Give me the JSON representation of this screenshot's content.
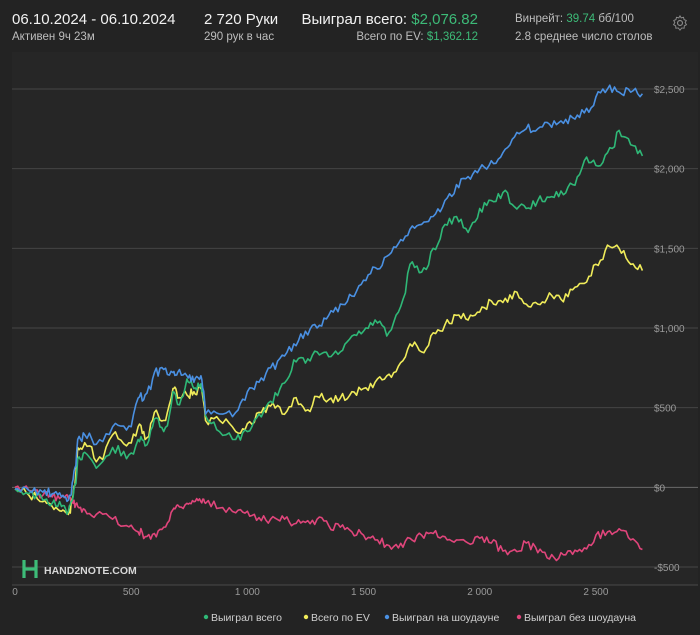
{
  "header": {
    "date_range": "06.10.2024 - 06.10.2024",
    "active_time": "Активен 9ч 23м",
    "hands": "2 720 Руки",
    "hands_per_hour": "290 рук в час",
    "won_total_label": "Выиграл всего:",
    "won_total_value": "$2,076.82",
    "ev_total_label": "Всего по EV:",
    "ev_total_value": "$1,362.12",
    "winrate_label": "Винрейт:",
    "winrate_value": "39.74",
    "winrate_unit": "бб/100",
    "avg_tables": "2.8 среднее число столов"
  },
  "watermark": "HAND2NOTE.COM",
  "colors": {
    "won_total": "#2fb877",
    "ev": "#f0ec5a",
    "showdown": "#4a90e2",
    "non_showdown": "#e0457b",
    "accent_green": "#3dbb78"
  },
  "chart_data": {
    "type": "line",
    "title": "",
    "xlabel": "",
    "ylabel": "",
    "xlim": [
      0,
      2720
    ],
    "ylim": [
      -500,
      2500
    ],
    "x_ticks": [
      0,
      500,
      1000,
      1500,
      2000,
      2500
    ],
    "x_tick_labels": [
      "0",
      "500",
      "1 000",
      "1 500",
      "2 000",
      "2 500"
    ],
    "y_ticks": [
      -500,
      0,
      500,
      1000,
      1500,
      2000,
      2500
    ],
    "y_tick_labels": [
      "-$500",
      "$0",
      "$500",
      "$1,000",
      "$1,500",
      "$2,000",
      "$2,500"
    ],
    "grid": true,
    "legend_position": "bottom",
    "series": [
      {
        "name": "Выиграл всего",
        "color_key": "won_total",
        "x": [
          0,
          60,
          120,
          160,
          200,
          230,
          250,
          270,
          300,
          350,
          420,
          480,
          530,
          560,
          600,
          640,
          680,
          700,
          740,
          770,
          800,
          820,
          880,
          950,
          1000,
          1050,
          1100,
          1150,
          1200,
          1250,
          1300,
          1350,
          1400,
          1450,
          1500,
          1550,
          1600,
          1650,
          1700,
          1750,
          1800,
          1850,
          1900,
          1950,
          2000,
          2050,
          2100,
          2150,
          2200,
          2250,
          2300,
          2350,
          2400,
          2450,
          2500,
          2550,
          2600,
          2650,
          2700
        ],
        "values": [
          -10,
          -40,
          -80,
          -100,
          -120,
          -150,
          -60,
          180,
          220,
          120,
          250,
          180,
          300,
          260,
          430,
          350,
          600,
          520,
          680,
          620,
          650,
          450,
          350,
          300,
          350,
          460,
          540,
          650,
          800,
          780,
          850,
          820,
          850,
          950,
          980,
          1050,
          950,
          1100,
          1400,
          1350,
          1500,
          1650,
          1700,
          1600,
          1750,
          1800,
          1850,
          1760,
          1750,
          1800,
          1820,
          1860,
          1900,
          2050,
          2020,
          2100,
          2240,
          2150,
          2080
        ]
      },
      {
        "name": "Всего по EV",
        "color_key": "ev",
        "x": [
          0,
          60,
          120,
          160,
          200,
          230,
          250,
          270,
          300,
          350,
          420,
          480,
          530,
          560,
          600,
          640,
          680,
          700,
          740,
          770,
          800,
          820,
          880,
          950,
          1000,
          1050,
          1100,
          1150,
          1200,
          1250,
          1300,
          1350,
          1400,
          1450,
          1500,
          1550,
          1600,
          1650,
          1700,
          1750,
          1800,
          1850,
          1900,
          1950,
          2000,
          2050,
          2100,
          2150,
          2200,
          2250,
          2300,
          2350,
          2400,
          2450,
          2500,
          2550,
          2600,
          2650,
          2700
        ],
        "values": [
          -10,
          -50,
          -90,
          -120,
          -150,
          -170,
          -50,
          250,
          280,
          160,
          330,
          260,
          380,
          300,
          470,
          420,
          620,
          560,
          580,
          600,
          620,
          420,
          420,
          350,
          400,
          470,
          510,
          460,
          560,
          480,
          570,
          550,
          560,
          600,
          620,
          660,
          700,
          760,
          900,
          850,
          970,
          1020,
          1080,
          1050,
          1100,
          1170,
          1160,
          1230,
          1150,
          1150,
          1220,
          1180,
          1240,
          1280,
          1400,
          1520,
          1500,
          1400,
          1360
        ]
      },
      {
        "name": "Выиграл на шоудауне",
        "color_key": "showdown",
        "x": [
          0,
          60,
          120,
          160,
          200,
          230,
          250,
          270,
          300,
          350,
          420,
          480,
          530,
          560,
          600,
          640,
          680,
          700,
          740,
          770,
          800,
          820,
          880,
          950,
          1000,
          1050,
          1100,
          1150,
          1200,
          1250,
          1300,
          1350,
          1400,
          1450,
          1500,
          1550,
          1600,
          1650,
          1700,
          1750,
          1800,
          1850,
          1900,
          1950,
          2000,
          2050,
          2100,
          2150,
          2200,
          2250,
          2300,
          2350,
          2400,
          2450,
          2500,
          2550,
          2600,
          2650,
          2700
        ],
        "values": [
          -10,
          -20,
          -30,
          -40,
          -60,
          -80,
          50,
          300,
          330,
          270,
          380,
          360,
          560,
          580,
          720,
          740,
          720,
          720,
          700,
          660,
          700,
          460,
          460,
          470,
          600,
          660,
          750,
          830,
          900,
          980,
          1000,
          1080,
          1150,
          1200,
          1300,
          1380,
          1450,
          1530,
          1620,
          1650,
          1700,
          1800,
          1900,
          1950,
          2000,
          2050,
          2100,
          2200,
          2250,
          2250,
          2280,
          2300,
          2320,
          2350,
          2450,
          2500,
          2480,
          2480,
          2470
        ]
      },
      {
        "name": "Выиграл без шоудауна",
        "color_key": "non_showdown",
        "x": [
          0,
          60,
          120,
          160,
          200,
          230,
          250,
          270,
          300,
          350,
          420,
          480,
          530,
          560,
          600,
          640,
          680,
          700,
          740,
          770,
          800,
          820,
          880,
          950,
          1000,
          1050,
          1100,
          1150,
          1200,
          1250,
          1300,
          1350,
          1400,
          1450,
          1500,
          1550,
          1600,
          1650,
          1700,
          1750,
          1800,
          1850,
          1900,
          1950,
          2000,
          2050,
          2100,
          2150,
          2200,
          2250,
          2300,
          2350,
          2400,
          2450,
          2500,
          2550,
          2600,
          2650,
          2700
        ],
        "values": [
          0,
          -20,
          -50,
          -60,
          -60,
          -70,
          -100,
          -120,
          -140,
          -170,
          -200,
          -240,
          -280,
          -310,
          -290,
          -250,
          -140,
          -110,
          -100,
          -90,
          -90,
          -100,
          -130,
          -160,
          -150,
          -190,
          -200,
          -180,
          -230,
          -220,
          -200,
          -240,
          -250,
          -280,
          -300,
          -330,
          -360,
          -380,
          -320,
          -300,
          -290,
          -310,
          -330,
          -350,
          -320,
          -350,
          -400,
          -390,
          -350,
          -410,
          -450,
          -410,
          -420,
          -380,
          -300,
          -280,
          -260,
          -330,
          -390
        ]
      }
    ]
  }
}
